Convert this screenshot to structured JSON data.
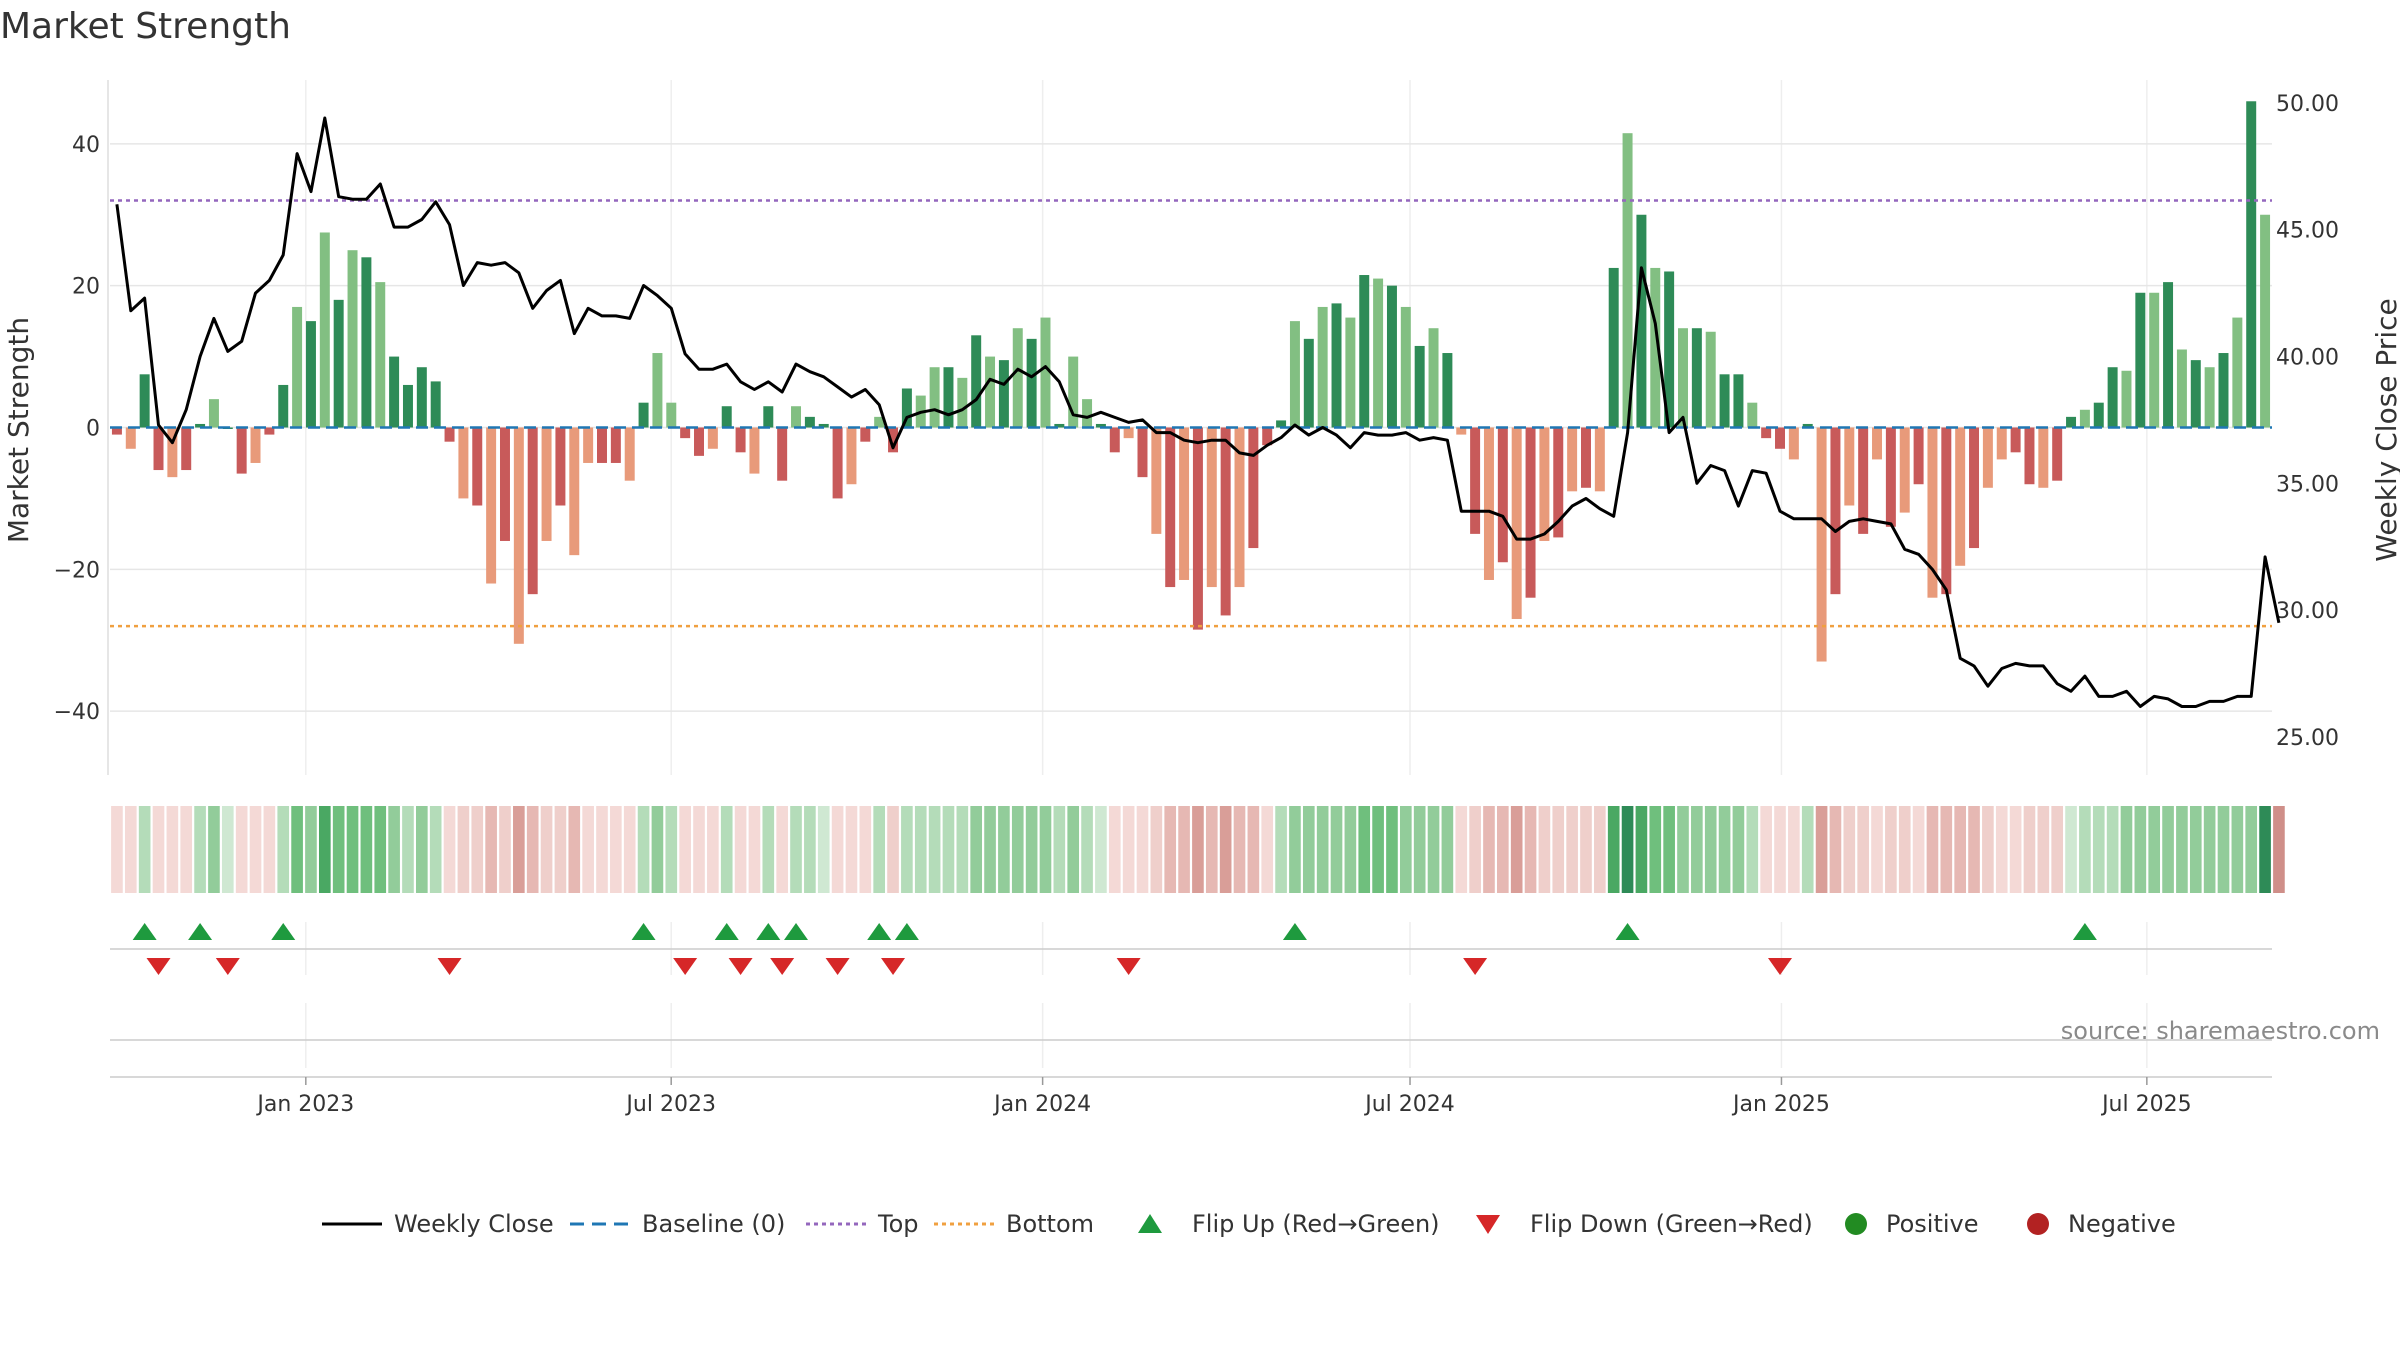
{
  "chart_data": {
    "type": "bar",
    "title": "Market Strength",
    "ylabel": "Market Strength",
    "y2label": "Weekly Close Price",
    "ylim": [
      -49,
      49
    ],
    "y2lim": [
      23.5,
      50.9
    ],
    "yticks": [
      40,
      20,
      0,
      -20,
      -40
    ],
    "ytick_labels": [
      "40",
      "20",
      "0",
      "−20",
      "−40"
    ],
    "y2ticks": [
      50,
      45,
      40,
      35,
      30,
      25
    ],
    "y2tick_labels": [
      "50.00",
      "45.00",
      "40.00",
      "35.00",
      "30.00",
      "25.00"
    ],
    "top_level": 32,
    "bottom_level": -28,
    "x_start": "2022-09-26",
    "x_end": "2025-09-01",
    "xticks": [
      {
        "label": "Jan 2023",
        "date": "2023-01-01"
      },
      {
        "label": "Jul 2023",
        "date": "2023-07-01"
      },
      {
        "label": "Jan 2024",
        "date": "2024-01-01"
      },
      {
        "label": "Jul 2024",
        "date": "2024-07-01"
      },
      {
        "label": "Jan 2025",
        "date": "2025-01-01"
      },
      {
        "label": "Jul 2025",
        "date": "2025-07-01"
      }
    ],
    "strength": [
      -1,
      -3,
      7.5,
      -6,
      -7,
      -6,
      0.5,
      4,
      0,
      -6.5,
      -5,
      -1,
      6,
      17,
      15,
      27.5,
      18,
      25,
      24,
      20.5,
      10,
      6,
      8.5,
      6.5,
      -2,
      -10,
      -11,
      -22,
      -16,
      -30.5,
      -23.5,
      -16,
      -11,
      -18,
      -5,
      -5,
      -5,
      -7.5,
      3.5,
      10.5,
      3.5,
      -1.5,
      -4,
      -3,
      3,
      -3.5,
      -6.5,
      3,
      -7.5,
      3,
      1.5,
      0.5,
      -10,
      -8,
      -2,
      1.5,
      -3.5,
      5.5,
      4.5,
      8.5,
      8.5,
      7,
      13,
      10,
      9.5,
      14,
      12.5,
      15.5,
      0.5,
      10,
      4,
      0.5,
      -3.5,
      -1.5,
      -7,
      -15,
      -22.5,
      -21.5,
      -28.5,
      -22.5,
      -26.5,
      -22.5,
      -17,
      -2.5,
      1,
      15,
      12.5,
      17,
      17.5,
      15.5,
      21.5,
      21,
      20,
      17,
      11.5,
      14,
      10.5,
      -1,
      -15,
      -21.5,
      -19,
      -27,
      -24,
      -16,
      -15.5,
      -9,
      -8.5,
      -9,
      22.5,
      41.5,
      30,
      22.5,
      22,
      14,
      14,
      13.5,
      7.5,
      7.5,
      3.5,
      -1.5,
      -3,
      -4.5,
      0.5,
      -33,
      -23.5,
      -11,
      -15,
      -4.5,
      -14,
      -12,
      -8,
      -24,
      -23.5,
      -19.5,
      -17,
      -8.5,
      -4.5,
      -3.5,
      -8,
      -8.5,
      -7.5,
      1.5,
      2.5,
      3.5,
      8.5,
      8,
      19,
      19,
      20.5,
      11,
      9.5,
      8.5,
      10.5,
      15.5,
      46,
      30
    ],
    "close": [
      46.0,
      41.8,
      42.3,
      37.3,
      36.6,
      37.9,
      40.0,
      41.5,
      40.2,
      40.6,
      42.5,
      43.0,
      44.0,
      48.0,
      46.5,
      49.4,
      46.3,
      46.2,
      46.2,
      46.8,
      45.1,
      45.1,
      45.4,
      46.1,
      45.2,
      42.8,
      43.7,
      43.6,
      43.7,
      43.3,
      41.9,
      42.6,
      43.0,
      40.9,
      41.9,
      41.6,
      41.6,
      41.5,
      42.8,
      42.4,
      41.9,
      40.1,
      39.5,
      39.5,
      39.7,
      39.0,
      38.7,
      39.0,
      38.6,
      39.7,
      39.4,
      39.2,
      38.8,
      38.4,
      38.7,
      38.1,
      36.4,
      37.6,
      37.8,
      37.9,
      37.7,
      37.9,
      38.3,
      39.1,
      38.9,
      39.5,
      39.2,
      39.6,
      39.0,
      37.7,
      37.6,
      37.8,
      37.6,
      37.4,
      37.5,
      37.0,
      37.0,
      36.7,
      36.6,
      36.7,
      36.7,
      36.2,
      36.1,
      36.5,
      36.8,
      37.3,
      36.9,
      37.2,
      36.9,
      36.4,
      37.0,
      36.9,
      36.9,
      37.0,
      36.7,
      36.8,
      36.7,
      33.9,
      33.9,
      33.9,
      33.7,
      32.8,
      32.8,
      33.0,
      33.5,
      34.1,
      34.4,
      34.0,
      33.7,
      37.0,
      43.5,
      41.3,
      37.0,
      37.6,
      35.0,
      35.7,
      35.5,
      34.1,
      35.5,
      35.4,
      33.9,
      33.6,
      33.6,
      33.6,
      33.1,
      33.5,
      33.6,
      33.5,
      33.4,
      32.4,
      32.2,
      31.6,
      30.8,
      28.1,
      27.8,
      27.0,
      27.7,
      27.9,
      27.8,
      27.8,
      27.1,
      26.8,
      27.4,
      26.6,
      26.6,
      26.8,
      26.2,
      26.6,
      26.5,
      26.2,
      26.2,
      26.4,
      26.4,
      26.6,
      26.6,
      32.1,
      29.5
    ],
    "heat_levels": [
      1,
      1,
      2,
      1,
      1,
      1,
      2,
      3,
      1,
      1,
      1,
      1,
      2,
      4,
      3,
      5,
      4,
      4,
      4,
      4,
      3,
      2,
      3,
      2,
      1,
      2,
      2,
      3,
      2,
      4,
      3,
      2,
      2,
      3,
      1,
      1,
      1,
      1,
      2,
      3,
      2,
      1,
      1,
      1,
      2,
      1,
      1,
      2,
      1,
      2,
      2,
      1,
      1,
      1,
      1,
      2,
      2,
      2,
      2,
      2,
      2,
      2,
      3,
      3,
      3,
      3,
      3,
      3,
      2,
      3,
      2,
      1,
      1,
      1,
      1,
      2,
      3,
      3,
      4,
      3,
      4,
      3,
      3,
      1,
      2,
      3,
      3,
      3,
      3,
      3,
      4,
      4,
      4,
      3,
      3,
      3,
      3,
      1,
      2,
      3,
      3,
      4,
      3,
      2,
      2,
      2,
      2,
      2,
      5,
      6,
      5,
      4,
      4,
      3,
      3,
      3,
      3,
      3,
      2,
      1,
      1,
      1,
      2,
      4,
      3,
      2,
      2,
      1,
      2,
      2,
      1,
      3,
      3,
      3,
      3,
      2,
      1,
      1,
      2,
      2,
      2,
      1,
      2,
      2,
      2,
      3,
      3,
      3,
      3,
      3,
      3,
      3,
      3,
      3,
      3,
      7,
      5
    ],
    "flip_up_idx": [
      2,
      6,
      12,
      38,
      44,
      47,
      49,
      55,
      57,
      85,
      109,
      142
    ],
    "flip_down_idx": [
      3,
      8,
      24,
      41,
      45,
      48,
      52,
      56,
      73,
      98,
      120
    ],
    "legend": [
      {
        "label": "Weekly Close",
        "kind": "line",
        "color": "#000000"
      },
      {
        "label": "Baseline (0)",
        "kind": "dash",
        "color": "#1f77b4"
      },
      {
        "label": "Top",
        "kind": "dot",
        "color": "#9467bd"
      },
      {
        "label": "Bottom",
        "kind": "dot",
        "color": "#f0a040"
      },
      {
        "label": "Flip Up (Red→Green)",
        "kind": "tri-up",
        "color": "#1e9a3e"
      },
      {
        "label": "Flip Down (Green→Red)",
        "kind": "tri-down",
        "color": "#d62728"
      },
      {
        "label": "Positive",
        "kind": "circle",
        "color": "#228b22"
      },
      {
        "label": "Negative",
        "kind": "circle",
        "color": "#b22222"
      }
    ],
    "source": "source: sharemaestro.com",
    "colors": {
      "pos_strong": "#2e8b57",
      "pos_light": "#82bf82",
      "neg_strong": "#c85a5a",
      "neg_light": "#e89a7a",
      "top": "#9467bd",
      "bottom": "#f0a040",
      "baseline": "#1f77b4",
      "close": "#000000"
    }
  }
}
